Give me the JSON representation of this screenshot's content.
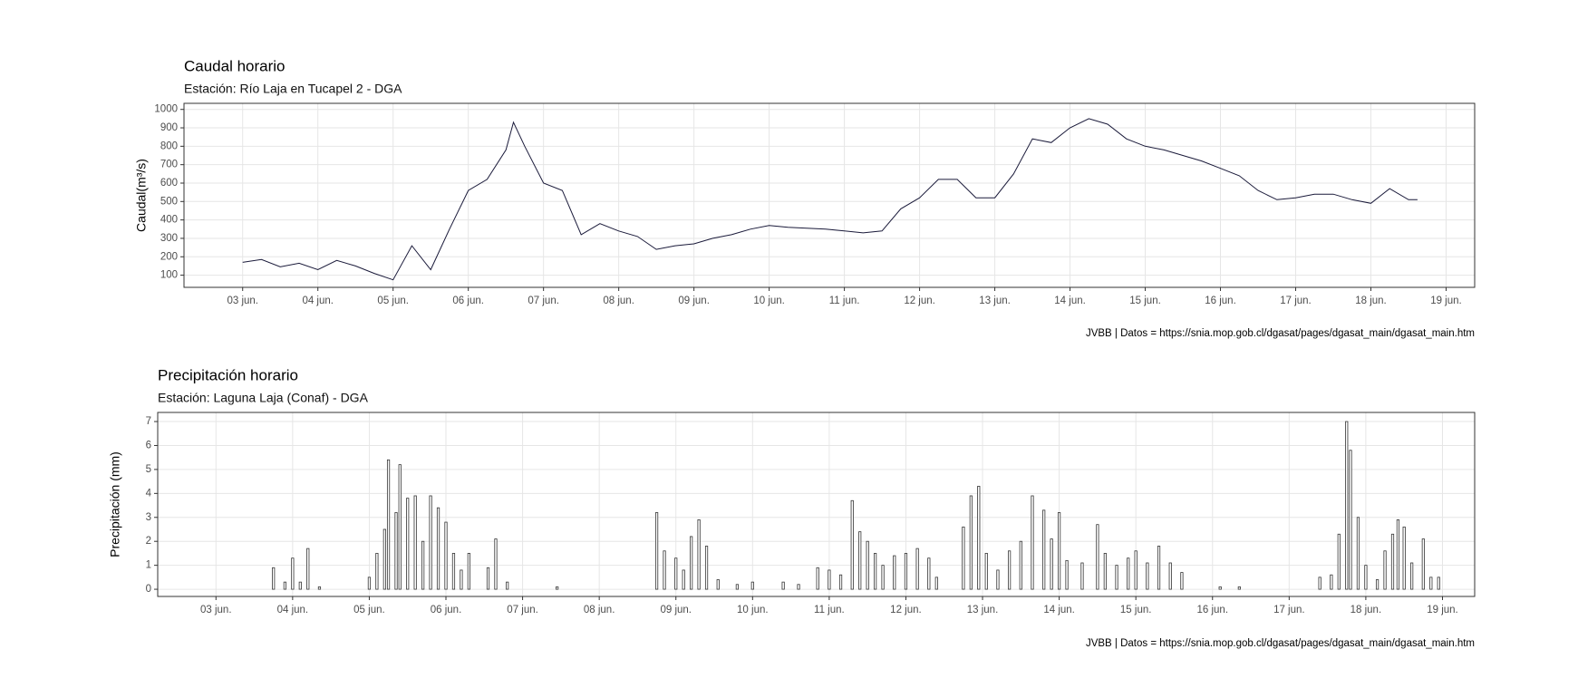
{
  "chart_data": [
    {
      "type": "line",
      "title": "Caudal horario",
      "subtitle": "Estación: Río Laja en Tucapel 2 - DGA",
      "y_label": "Caudal(m³/s)",
      "caption": "JVBB  | Datos = https://snia.mop.gob.cl/dgasat/pages/dgasat_main/dgasat_main.htm",
      "x": [
        3.0,
        3.25,
        3.5,
        3.75,
        4.0,
        4.25,
        4.5,
        4.75,
        5.0,
        5.25,
        5.5,
        5.75,
        6.0,
        6.25,
        6.5,
        6.6,
        6.75,
        7.0,
        7.25,
        7.5,
        7.75,
        8.0,
        8.25,
        8.5,
        8.75,
        9.0,
        9.25,
        9.5,
        9.75,
        10.0,
        10.25,
        10.5,
        10.75,
        11.0,
        11.25,
        11.5,
        11.75,
        12.0,
        12.25,
        12.5,
        12.75,
        13.0,
        13.25,
        13.5,
        13.75,
        14.0,
        14.25,
        14.5,
        14.75,
        15.0,
        15.25,
        15.5,
        15.75,
        16.0,
        16.25,
        16.5,
        16.75,
        17.0,
        17.25,
        17.5,
        17.75,
        18.0,
        18.25,
        18.5,
        18.62
      ],
      "values": [
        170,
        185,
        145,
        165,
        130,
        180,
        150,
        110,
        75,
        260,
        130,
        350,
        560,
        620,
        780,
        930,
        800,
        600,
        560,
        320,
        380,
        340,
        310,
        240,
        260,
        270,
        300,
        320,
        350,
        370,
        360,
        355,
        350,
        340,
        330,
        340,
        460,
        520,
        620,
        620,
        520,
        520,
        650,
        840,
        820,
        900,
        950,
        920,
        840,
        800,
        780,
        750,
        720,
        680,
        640,
        560,
        510,
        520,
        540,
        540,
        510,
        490,
        570,
        510,
        510
      ],
      "color": "#1a1a3a",
      "xlim": [
        2.22,
        19.38
      ],
      "ylim": [
        34,
        1033
      ],
      "xticks": [
        {
          "value": 3,
          "label": "03 jun."
        },
        {
          "value": 4,
          "label": "04 jun."
        },
        {
          "value": 5,
          "label": "05 jun."
        },
        {
          "value": 6,
          "label": "06 jun."
        },
        {
          "value": 7,
          "label": "07 jun."
        },
        {
          "value": 8,
          "label": "08 jun."
        },
        {
          "value": 9,
          "label": "09 jun."
        },
        {
          "value": 10,
          "label": "10 jun."
        },
        {
          "value": 11,
          "label": "11 jun."
        },
        {
          "value": 12,
          "label": "12 jun."
        },
        {
          "value": 13,
          "label": "13 jun."
        },
        {
          "value": 14,
          "label": "14 jun."
        },
        {
          "value": 15,
          "label": "15 jun."
        },
        {
          "value": 16,
          "label": "16 jun."
        },
        {
          "value": 17,
          "label": "17 jun."
        },
        {
          "value": 18,
          "label": "18 jun."
        },
        {
          "value": 19,
          "label": "19 jun."
        }
      ],
      "yticks": [
        100,
        200,
        300,
        400,
        500,
        600,
        700,
        800,
        900,
        1000
      ],
      "grid": true
    },
    {
      "type": "bar",
      "title": "Precipitación horario",
      "subtitle": "Estación: Laguna Laja (Conaf) - DGA",
      "y_label": "Precipitación (mm)",
      "caption": "JVBB  | Datos = https://snia.mop.gob.cl/dgasat/pages/dgasat_main/dgasat_main.htm",
      "x": [
        3.75,
        3.9,
        4.0,
        4.1,
        4.2,
        4.35,
        5.0,
        5.1,
        5.2,
        5.25,
        5.35,
        5.4,
        5.5,
        5.6,
        5.7,
        5.8,
        5.9,
        6.0,
        6.1,
        6.2,
        6.3,
        6.55,
        6.65,
        6.8,
        7.45,
        8.75,
        8.85,
        9.0,
        9.1,
        9.2,
        9.3,
        9.4,
        9.55,
        9.8,
        10.0,
        10.4,
        10.6,
        10.85,
        11.0,
        11.15,
        11.3,
        11.4,
        11.5,
        11.6,
        11.7,
        11.85,
        12.0,
        12.15,
        12.3,
        12.4,
        12.75,
        12.85,
        12.95,
        13.05,
        13.2,
        13.35,
        13.5,
        13.65,
        13.8,
        13.9,
        14.0,
        14.1,
        14.3,
        14.5,
        14.6,
        14.75,
        14.9,
        15.0,
        15.15,
        15.3,
        15.45,
        15.6,
        16.1,
        16.35,
        17.4,
        17.55,
        17.65,
        17.75,
        17.8,
        17.9,
        18.0,
        18.15,
        18.25,
        18.35,
        18.42,
        18.5,
        18.6,
        18.75,
        18.85,
        18.95
      ],
      "values": [
        0.9,
        0.3,
        1.3,
        0.3,
        1.7,
        0.1,
        0.5,
        1.5,
        2.5,
        5.4,
        3.2,
        5.2,
        3.8,
        3.9,
        2.0,
        3.9,
        3.4,
        2.8,
        1.5,
        0.8,
        1.5,
        0.9,
        2.1,
        0.3,
        0.1,
        3.2,
        1.6,
        1.3,
        0.8,
        2.2,
        2.9,
        1.8,
        0.4,
        0.2,
        0.3,
        0.3,
        0.2,
        0.9,
        0.8,
        0.6,
        3.7,
        2.4,
        2.0,
        1.5,
        1.0,
        1.4,
        1.5,
        1.7,
        1.3,
        0.5,
        2.6,
        3.9,
        4.3,
        1.5,
        0.8,
        1.6,
        2.0,
        3.9,
        3.3,
        2.1,
        3.2,
        1.2,
        1.1,
        2.7,
        1.5,
        1.0,
        1.3,
        1.6,
        1.1,
        1.8,
        1.1,
        0.7,
        0.1,
        0.1,
        0.5,
        0.6,
        2.3,
        7.0,
        5.8,
        3.0,
        1.0,
        0.4,
        1.6,
        2.3,
        2.9,
        2.6,
        1.1,
        2.1,
        0.5,
        0.5
      ],
      "color": "#333333",
      "xlim": [
        2.24,
        19.42
      ],
      "ylim": [
        -0.3,
        7.38
      ],
      "xticks": [
        {
          "value": 3,
          "label": "03 jun."
        },
        {
          "value": 4,
          "label": "04 jun."
        },
        {
          "value": 5,
          "label": "05 jun."
        },
        {
          "value": 6,
          "label": "06 jun."
        },
        {
          "value": 7,
          "label": "07 jun."
        },
        {
          "value": 8,
          "label": "08 jun."
        },
        {
          "value": 9,
          "label": "09 jun."
        },
        {
          "value": 10,
          "label": "10 jun."
        },
        {
          "value": 11,
          "label": "11 jun."
        },
        {
          "value": 12,
          "label": "12 jun."
        },
        {
          "value": 13,
          "label": "13 jun."
        },
        {
          "value": 14,
          "label": "14 jun."
        },
        {
          "value": 15,
          "label": "15 jun."
        },
        {
          "value": 16,
          "label": "16 jun."
        },
        {
          "value": 17,
          "label": "17 jun."
        },
        {
          "value": 18,
          "label": "18 jun."
        },
        {
          "value": 19,
          "label": "19 jun."
        }
      ],
      "yticks": [
        0,
        1,
        2,
        3,
        4,
        5,
        6,
        7
      ],
      "grid": true
    }
  ]
}
